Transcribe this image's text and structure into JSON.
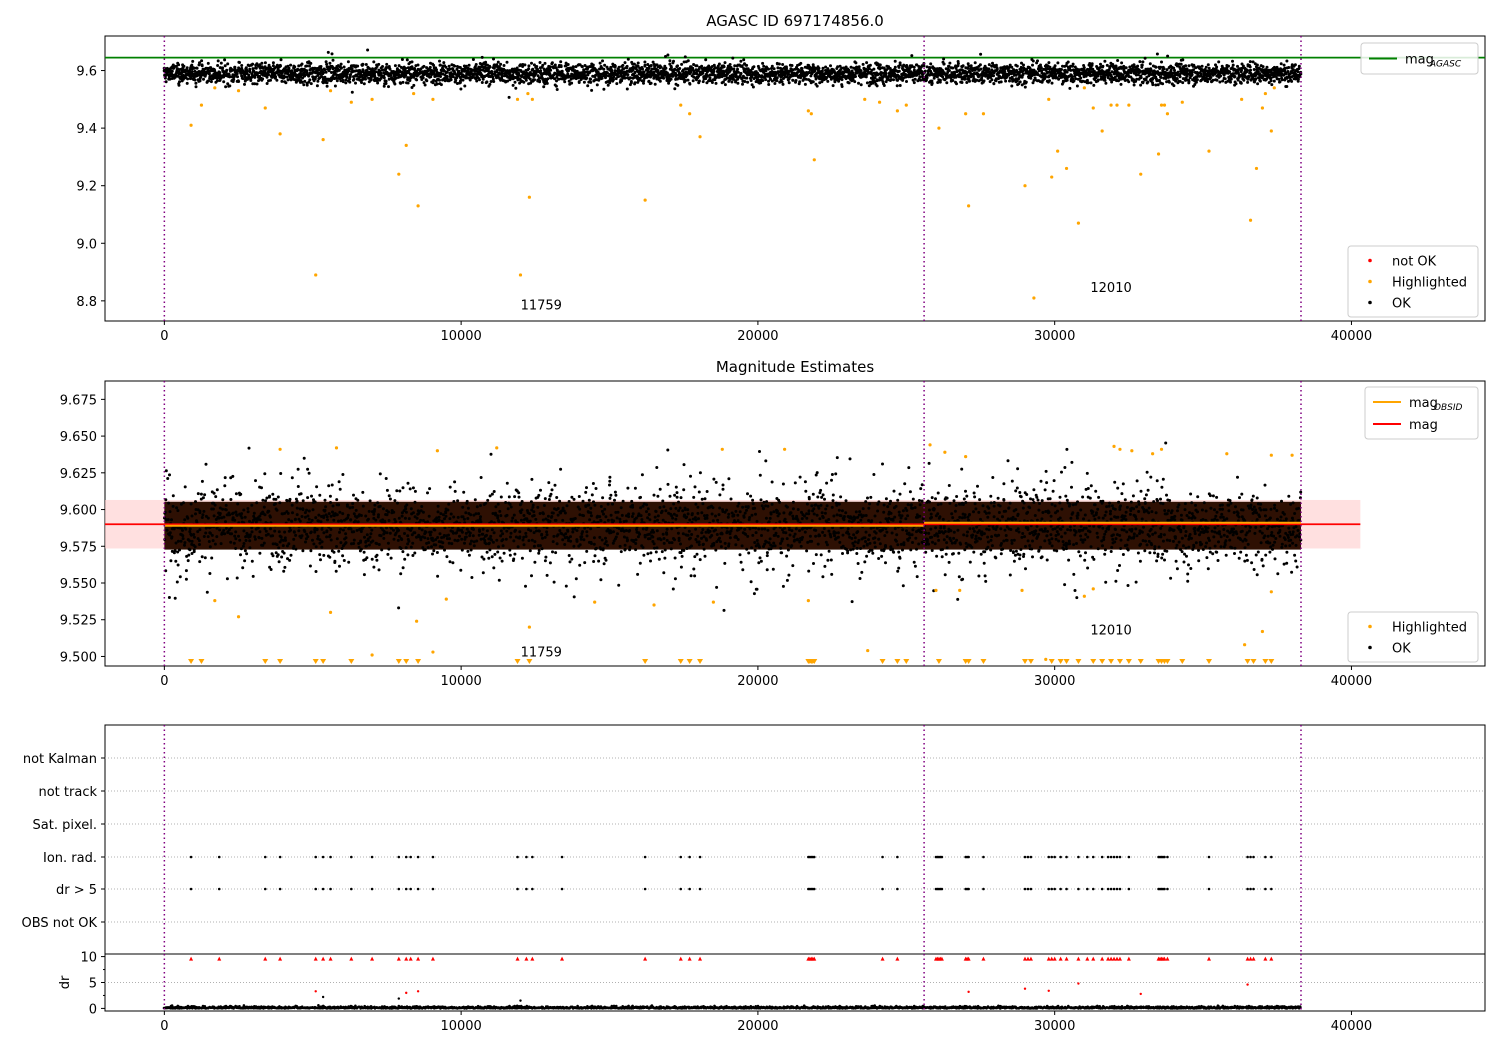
{
  "chart_data": [
    {
      "type": "scatter",
      "title": "AGASC ID 697174856.0",
      "xlabel": "",
      "ylabel": "",
      "xlim": [
        -2000,
        44500
      ],
      "ylim": [
        8.73,
        9.72
      ],
      "xticks": [
        "0",
        "10000",
        "20000",
        "30000",
        "40000"
      ],
      "yticks": [
        "8.8",
        "9.0",
        "9.2",
        "9.4",
        "9.6"
      ],
      "ytick_values": [
        8.8,
        9.0,
        9.2,
        9.4,
        9.6
      ],
      "xtick_values": [
        0,
        10000,
        20000,
        30000,
        40000
      ],
      "hlines": [
        {
          "name": "mag_AGASC",
          "y": 9.645,
          "color": "#008000"
        }
      ],
      "vlines": [
        0,
        25600,
        38300
      ],
      "obsid_labels": [
        {
          "text": "11759",
          "x": 12700,
          "y": 8.77
        },
        {
          "text": "12010",
          "x": 31900,
          "y": 8.83
        }
      ],
      "ok_band": {
        "center": 9.59,
        "spread": 0.025,
        "x_start": 0,
        "x_end": 38300
      },
      "highlighted": [
        [
          900,
          9.41
        ],
        [
          1250,
          9.48
        ],
        [
          1700,
          9.54
        ],
        [
          2500,
          9.53
        ],
        [
          3400,
          9.47
        ],
        [
          3900,
          9.38
        ],
        [
          5100,
          8.89
        ],
        [
          5350,
          9.36
        ],
        [
          5600,
          9.53
        ],
        [
          6300,
          9.49
        ],
        [
          7000,
          9.5
        ],
        [
          7900,
          9.24
        ],
        [
          8150,
          9.34
        ],
        [
          8400,
          9.52
        ],
        [
          8550,
          9.13
        ],
        [
          9050,
          9.5
        ],
        [
          11900,
          9.5
        ],
        [
          12000,
          8.89
        ],
        [
          12250,
          9.52
        ],
        [
          12300,
          9.16
        ],
        [
          12400,
          9.5
        ],
        [
          16200,
          9.15
        ],
        [
          17400,
          9.48
        ],
        [
          17700,
          9.45
        ],
        [
          18050,
          9.37
        ],
        [
          21700,
          9.46
        ],
        [
          21800,
          9.45
        ],
        [
          21900,
          9.29
        ],
        [
          23600,
          9.5
        ],
        [
          24100,
          9.49
        ],
        [
          24700,
          9.46
        ],
        [
          25000,
          9.48
        ],
        [
          26100,
          9.4
        ],
        [
          27100,
          9.13
        ],
        [
          27000,
          9.45
        ],
        [
          27600,
          9.45
        ],
        [
          29000,
          9.2
        ],
        [
          29300,
          8.81
        ],
        [
          29800,
          9.5
        ],
        [
          29900,
          9.23
        ],
        [
          30100,
          9.32
        ],
        [
          30400,
          9.26
        ],
        [
          30800,
          9.07
        ],
        [
          31000,
          9.54
        ],
        [
          31300,
          9.47
        ],
        [
          31600,
          9.39
        ],
        [
          31900,
          9.48
        ],
        [
          32100,
          9.48
        ],
        [
          32500,
          9.48
        ],
        [
          32900,
          9.24
        ],
        [
          33500,
          9.31
        ],
        [
          33600,
          9.48
        ],
        [
          33700,
          9.48
        ],
        [
          33800,
          9.45
        ],
        [
          34300,
          9.49
        ],
        [
          35200,
          9.32
        ],
        [
          36300,
          9.5
        ],
        [
          36600,
          9.08
        ],
        [
          36800,
          9.26
        ],
        [
          37000,
          9.47
        ],
        [
          37100,
          9.52
        ],
        [
          37300,
          9.39
        ],
        [
          37400,
          9.54
        ]
      ],
      "legend_top": [
        {
          "label": "mag",
          "sub": "AGASC",
          "color": "#008000",
          "kind": "line"
        }
      ],
      "legend_bottom": [
        {
          "label": "not OK",
          "color": "#ff0000",
          "kind": "dot"
        },
        {
          "label": "Highlighted",
          "color": "#ffa500",
          "kind": "dot"
        },
        {
          "label": "OK",
          "color": "#000000",
          "kind": "dot"
        }
      ]
    },
    {
      "type": "scatter",
      "title": "Magnitude Estimates",
      "xlabel": "",
      "ylabel": "",
      "xlim": [
        -2000,
        44500
      ],
      "ylim": [
        9.4935,
        9.6875
      ],
      "xticks": [
        "0",
        "10000",
        "20000",
        "30000",
        "40000"
      ],
      "xtick_values": [
        0,
        10000,
        20000,
        30000,
        40000
      ],
      "yticks": [
        "9.500",
        "9.525",
        "9.550",
        "9.575",
        "9.600",
        "9.625",
        "9.650",
        "9.675"
      ],
      "ytick_values": [
        9.5,
        9.525,
        9.55,
        9.575,
        9.6,
        9.625,
        9.65,
        9.675
      ],
      "vlines": [
        0,
        25600,
        38300
      ],
      "mag_line": {
        "name": "mag",
        "y": 9.59,
        "band": [
          9.5735,
          9.6065
        ],
        "x_end": 40300,
        "color": "#ff0000"
      },
      "mag_obsid": [
        {
          "x0": 0,
          "x1": 25600,
          "y": 9.589
        },
        {
          "x0": 25600,
          "x1": 38300,
          "y": 9.591
        }
      ],
      "obsid_labels": [
        {
          "text": "11759",
          "x": 12700,
          "y": 9.5
        },
        {
          "text": "12010",
          "x": 31900,
          "y": 9.515
        }
      ],
      "ok_band": {
        "center": 9.589,
        "spread": 0.0155,
        "x_start": 0,
        "x_end": 38300
      },
      "highlighted": [
        [
          1700,
          9.538
        ],
        [
          2500,
          9.527
        ],
        [
          5600,
          9.53
        ],
        [
          7000,
          9.501
        ],
        [
          8500,
          9.524
        ],
        [
          9050,
          9.503
        ],
        [
          9500,
          9.539
        ],
        [
          12300,
          9.52
        ],
        [
          14500,
          9.537
        ],
        [
          16500,
          9.535
        ],
        [
          18500,
          9.537
        ],
        [
          21700,
          9.538
        ],
        [
          23700,
          9.504
        ],
        [
          26000,
          9.545
        ],
        [
          26800,
          9.545
        ],
        [
          28900,
          9.545
        ],
        [
          29700,
          9.498
        ],
        [
          31000,
          9.541
        ],
        [
          31300,
          9.546
        ],
        [
          36400,
          9.508
        ],
        [
          37000,
          9.517
        ],
        [
          37300,
          9.544
        ],
        [
          3900,
          9.641
        ],
        [
          5800,
          9.642
        ],
        [
          9200,
          9.64
        ],
        [
          11200,
          9.642
        ],
        [
          18800,
          9.641
        ],
        [
          20900,
          9.641
        ],
        [
          25800,
          9.644
        ],
        [
          26300,
          9.639
        ],
        [
          27000,
          9.636
        ],
        [
          32000,
          9.643
        ],
        [
          32200,
          9.641
        ],
        [
          32600,
          9.64
        ],
        [
          33300,
          9.638
        ],
        [
          33600,
          9.641
        ],
        [
          35800,
          9.638
        ],
        [
          37300,
          9.637
        ],
        [
          38000,
          9.637
        ]
      ],
      "highlighted_low_x": [
        900,
        1250,
        3400,
        3900,
        5100,
        5350,
        6300,
        7900,
        8150,
        8550,
        11900,
        12300,
        16200,
        17400,
        17700,
        18050,
        21700,
        21750,
        21800,
        21850,
        21900,
        24200,
        24700,
        25000,
        26100,
        27000,
        27100,
        27600,
        29000,
        29200,
        29900,
        30200,
        30400,
        30800,
        31300,
        31600,
        31900,
        32200,
        32500,
        32900,
        33500,
        33600,
        33700,
        33800,
        34300,
        35200,
        36500,
        36700,
        37100,
        37300
      ],
      "legend_top": [
        {
          "label": "mag",
          "sub": "OBSID",
          "color": "#ffa500",
          "kind": "line"
        },
        {
          "label": "mag",
          "sub": "",
          "color": "#ff0000",
          "kind": "line"
        }
      ],
      "legend_bottom": [
        {
          "label": "Highlighted",
          "color": "#ffa500",
          "kind": "dot"
        },
        {
          "label": "OK",
          "color": "#000000",
          "kind": "dot"
        }
      ]
    },
    {
      "type": "scatter",
      "title": "",
      "xlabel": "",
      "ylabel": "",
      "xlim": [
        -2000,
        44500
      ],
      "flag_rows": [
        "not Kalman",
        "not track",
        "Sat. pixel.",
        "Ion. rad.",
        "dr > 5",
        "OBS not OK"
      ],
      "vlines": [
        0,
        25600,
        38300
      ],
      "flagged_x": [
        900,
        1850,
        3400,
        3900,
        5100,
        5350,
        5600,
        6300,
        7000,
        7900,
        8150,
        8300,
        8550,
        9050,
        11900,
        12200,
        12400,
        13400,
        16200,
        17400,
        17700,
        18050,
        21700,
        21750,
        21800,
        21850,
        21900,
        24200,
        24700,
        26000,
        26050,
        26100,
        26150,
        26200,
        27000,
        27050,
        27100,
        27600,
        29000,
        29100,
        29200,
        29800,
        29900,
        30000,
        30200,
        30400,
        30800,
        31100,
        31300,
        31600,
        31800,
        31900,
        32000,
        32100,
        32200,
        32500,
        33500,
        33550,
        33600,
        33650,
        33700,
        33800,
        35200,
        36500,
        36600,
        36700,
        37100,
        37300
      ]
    },
    {
      "type": "scatter",
      "title": "",
      "xlabel": "",
      "ylabel": "dr",
      "xlim": [
        -2000,
        44500
      ],
      "ylim": [
        -0.5,
        10.5
      ],
      "yticks": [
        "0",
        "5",
        "10"
      ],
      "ytick_values": [
        0,
        5,
        10
      ],
      "xticks": [
        "0",
        "10000",
        "20000",
        "30000",
        "40000"
      ],
      "xtick_values": [
        0,
        10000,
        20000,
        30000,
        40000
      ],
      "vlines": [
        0,
        25600,
        38300
      ],
      "dr_high": [
        [
          5100,
          3.3
        ],
        [
          5350,
          2.2
        ],
        [
          8150,
          3.0
        ],
        [
          8550,
          3.3
        ],
        [
          27100,
          3.2
        ],
        [
          29000,
          3.8
        ],
        [
          29800,
          3.4
        ],
        [
          30800,
          4.8
        ],
        [
          32900,
          2.8
        ],
        [
          36500,
          4.6
        ],
        [
          7900,
          1.9
        ],
        [
          12000,
          1.5
        ]
      ]
    }
  ]
}
